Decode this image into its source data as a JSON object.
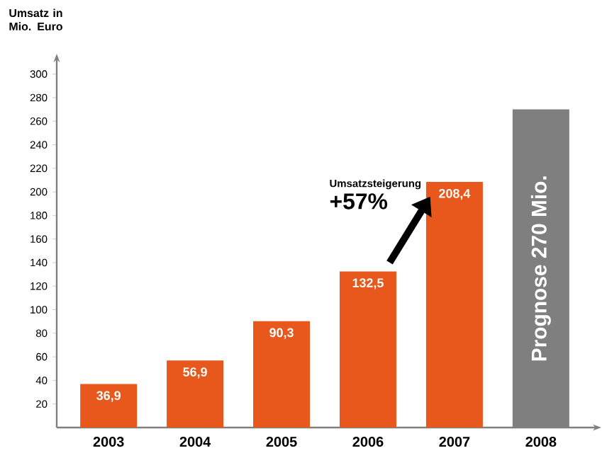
{
  "chart_data": {
    "type": "bar",
    "ylabel": "Umsatz in Mio. Euro",
    "categories": [
      "2003",
      "2004",
      "2005",
      "2006",
      "2007",
      "2008"
    ],
    "values": [
      36.9,
      56.9,
      90.3,
      132.5,
      208.4,
      270
    ],
    "colors": [
      "#e8581c",
      "#e8581c",
      "#e8581c",
      "#e8581c",
      "#e8581c",
      "#7f7f7f"
    ],
    "value_labels": [
      "36,9",
      "56,9",
      "90,3",
      "132,5",
      "208,4",
      "Prognose 270 Mio."
    ],
    "ylim": [
      0,
      310
    ],
    "yticks": [
      20,
      40,
      60,
      80,
      100,
      120,
      140,
      160,
      180,
      200,
      220,
      240,
      260,
      280,
      300
    ],
    "annotations": [
      "Umsatzsteigerung",
      "+57%"
    ]
  }
}
